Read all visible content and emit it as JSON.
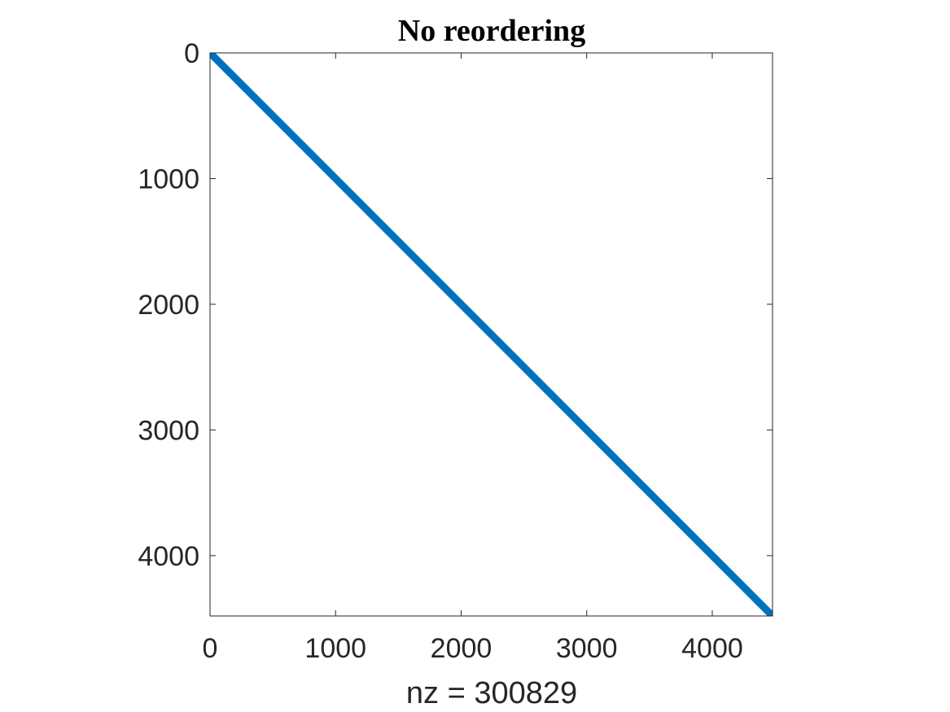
{
  "chart_data": {
    "type": "scatter",
    "title": "No reordering",
    "xlabel": "nz = 300829",
    "ylabel": "",
    "xlim": [
      0,
      4480
    ],
    "ylim": [
      0,
      4480
    ],
    "y_reversed": true,
    "grid": false,
    "xticks": [
      0,
      1000,
      2000,
      3000,
      4000
    ],
    "yticks": [
      0,
      1000,
      2000,
      3000,
      4000
    ],
    "series": [
      {
        "pattern": "banded diagonal sparsity",
        "color": "#0072BD",
        "x": [
          0,
          4480
        ],
        "y": [
          0,
          4480
        ]
      }
    ]
  }
}
